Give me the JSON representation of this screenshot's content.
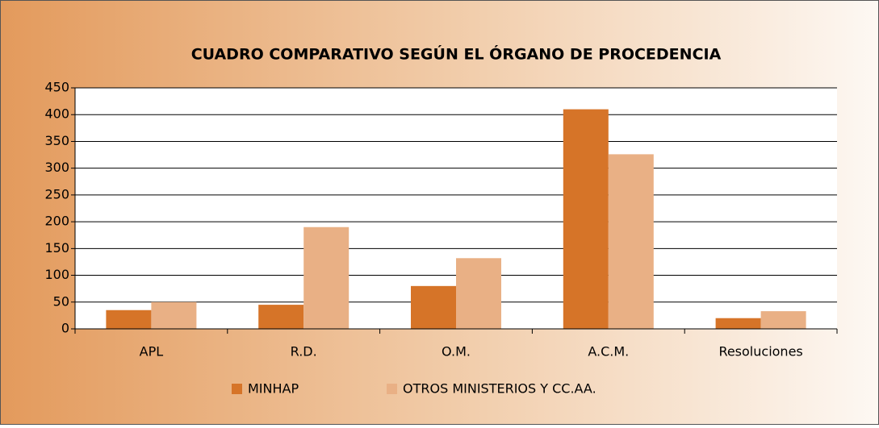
{
  "chart_data": {
    "type": "bar",
    "title": "CUADRO COMPARATIVO SEGÚN EL ÓRGANO DE PROCEDENCIA",
    "categories": [
      "APL",
      "R.D.",
      "O.M.",
      "A.C.M.",
      "Resoluciones"
    ],
    "series": [
      {
        "name": "MINHAP",
        "color": "#d67428",
        "values": [
          35,
          45,
          80,
          410,
          20
        ]
      },
      {
        "name": "OTROS MINISTERIOS Y CC.AA.",
        "color": "#e9b085",
        "values": [
          50,
          190,
          132,
          326,
          33
        ]
      }
    ],
    "ylim": [
      0,
      450
    ],
    "yticks": [
      0,
      50,
      100,
      150,
      200,
      250,
      300,
      350,
      400,
      450
    ],
    "grid": true
  }
}
